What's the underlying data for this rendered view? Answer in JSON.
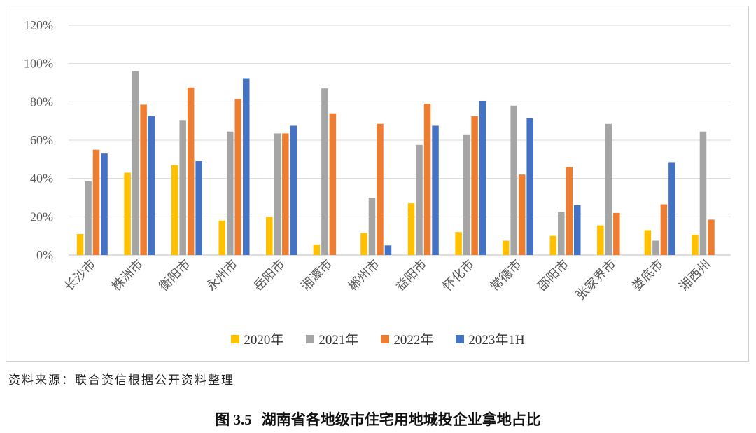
{
  "chart_data": {
    "type": "bar",
    "categories": [
      "长沙市",
      "株洲市",
      "衡阳市",
      "永州市",
      "岳阳市",
      "湘潭市",
      "郴州市",
      "益阳市",
      "怀化市",
      "常德市",
      "邵阳市",
      "张家界市",
      "娄底市",
      "湘西州"
    ],
    "series": [
      {
        "name": "2020年",
        "color": "#FFC000",
        "values": [
          11,
          43,
          47,
          18,
          20,
          5.5,
          11.5,
          27,
          12,
          7.5,
          10,
          15.5,
          13,
          10.5
        ]
      },
      {
        "name": "2021年",
        "color": "#A5A5A5",
        "values": [
          38.5,
          96,
          70.5,
          64.5,
          63.5,
          87,
          30,
          57.5,
          63,
          78,
          22.5,
          68.5,
          7.5,
          64.5
        ]
      },
      {
        "name": "2022年",
        "color": "#ED7D31",
        "values": [
          55,
          78.5,
          87.5,
          81.5,
          63.5,
          74,
          68.5,
          79,
          72.5,
          42,
          46,
          22,
          26.5,
          18.5
        ]
      },
      {
        "name": "2023年1H",
        "color": "#4472C4",
        "values": [
          53,
          72.5,
          49,
          92,
          67.5,
          null,
          5,
          67.5,
          80.5,
          71.5,
          26,
          null,
          48.5,
          null
        ]
      }
    ],
    "ylim": [
      0,
      120
    ],
    "yticks": [
      0,
      20,
      40,
      60,
      80,
      100,
      120
    ],
    "ytick_labels": [
      "0%",
      "20%",
      "40%",
      "60%",
      "80%",
      "100%",
      "120%"
    ],
    "grid": true,
    "legend_position": "bottom"
  },
  "source_note": "资料来源：联合资信根据公开资料整理",
  "caption_number": "图 3.5",
  "caption_title": "湖南省各地级市住宅用地城投企业拿地占比"
}
